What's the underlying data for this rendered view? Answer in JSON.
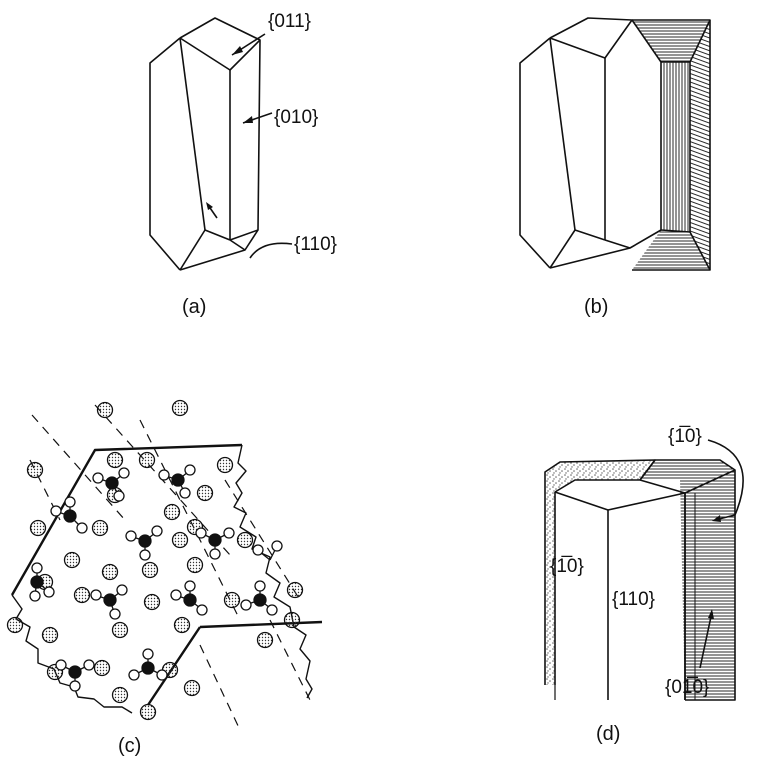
{
  "panels": [
    {
      "id": "a",
      "caption": "(a)",
      "labels": [
        "{011}",
        "{010}",
        "{110}"
      ]
    },
    {
      "id": "b",
      "caption": "(b)",
      "labels": []
    },
    {
      "id": "c",
      "caption": "(c)",
      "labels": []
    },
    {
      "id": "d",
      "caption": "(d)",
      "labels": [
        "{1̅0}",
        "{1̅0}",
        "{110}",
        "{01̅0}"
      ]
    }
  ],
  "colors": {
    "ink": "#111111",
    "stipple": "#9a9a9a",
    "background": "#ffffff"
  }
}
